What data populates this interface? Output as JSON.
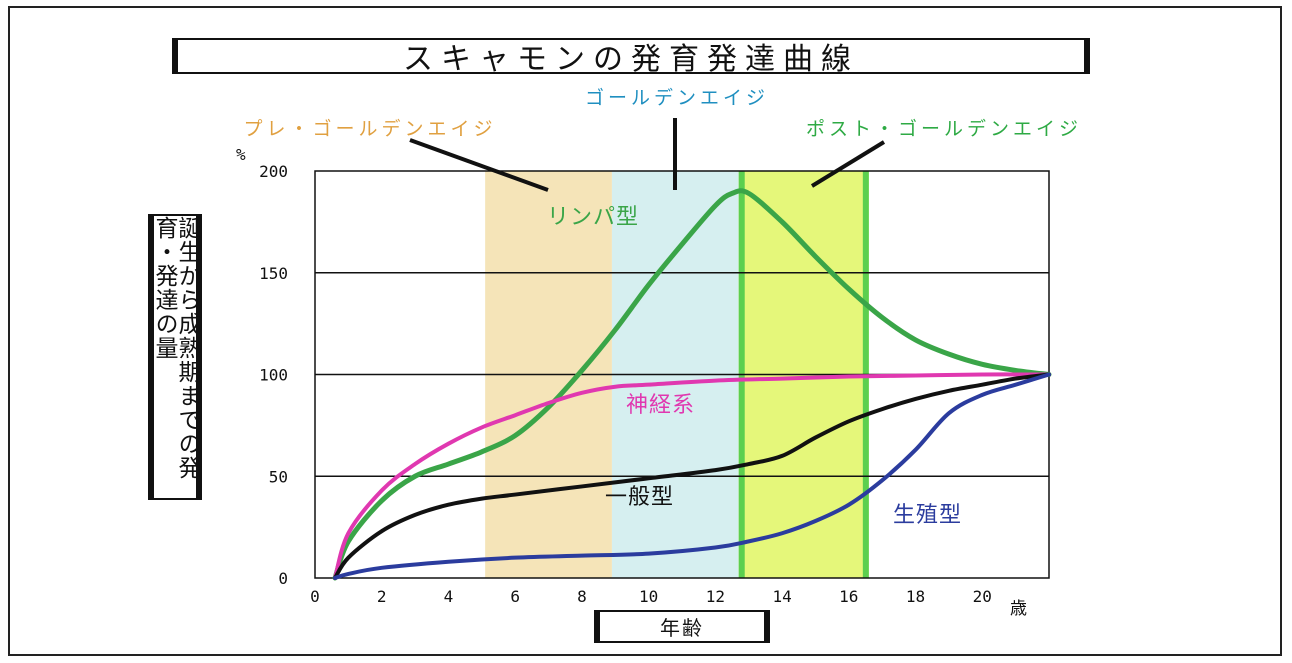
{
  "chart_data": {
    "type": "line",
    "title": "スキャモンの発育発達曲線",
    "xlabel": "年齢",
    "x_unit": "歳",
    "ylabel": "誕生から成熟期までの発育・発達の量",
    "y_unit": "%",
    "xlim": [
      0,
      22
    ],
    "ylim": [
      0,
      200
    ],
    "x_ticks": [
      "0",
      "2",
      "4",
      "6",
      "8",
      "10",
      "12",
      "14",
      "16",
      "18",
      "20"
    ],
    "y_ticks": [
      "0",
      "50",
      "100",
      "150",
      "200"
    ],
    "grid": "horizontal",
    "periods": [
      {
        "name": "プレ・ゴールデンエイジ",
        "x_start": 5.1,
        "x_end": 8.9,
        "color": "#f5e4b8",
        "label_color": "#e0a040"
      },
      {
        "name": "ゴールデンエイジ",
        "x_start": 8.9,
        "x_end": 12.7,
        "color": "#d6eff0",
        "label_color": "#1f8fc0"
      },
      {
        "name": "ポスト・ゴールデンエイジ",
        "x_start": 12.7,
        "x_end": 16.6,
        "color": "#e5f77a",
        "label_color": "#2eaa44"
      }
    ],
    "series": [
      {
        "name": "リンパ型",
        "color": "#3aa548",
        "x": [
          0.6,
          1,
          2,
          3,
          4,
          5,
          6,
          7,
          8,
          9,
          10,
          11,
          12,
          12.5,
          13,
          14,
          15,
          16,
          17,
          18,
          19,
          20,
          21,
          22
        ],
        "y": [
          0,
          18,
          38,
          50,
          56,
          62,
          70,
          84,
          102,
          122,
          144,
          164,
          183,
          189,
          189,
          175,
          158,
          142,
          128,
          117,
          110,
          105,
          102,
          100
        ]
      },
      {
        "name": "神経系",
        "color": "#e038b0",
        "x": [
          0.6,
          1,
          2,
          3,
          4,
          5,
          6,
          7,
          8,
          9,
          10,
          12,
          14,
          16,
          18,
          20,
          22
        ],
        "y": [
          0,
          22,
          43,
          56,
          66,
          74,
          80,
          86,
          91,
          94,
          95,
          97,
          98,
          99,
          99.5,
          100,
          100
        ]
      },
      {
        "name": "一般型",
        "color": "#111111",
        "x": [
          0.6,
          1,
          2,
          3,
          4,
          5,
          6,
          8,
          10,
          12,
          13,
          14,
          15,
          16,
          17,
          18,
          19,
          20,
          21,
          22
        ],
        "y": [
          0,
          10,
          23,
          31,
          36,
          39,
          41,
          45,
          49,
          53,
          56,
          60,
          69,
          77,
          83,
          88,
          92,
          95,
          98,
          100
        ]
      },
      {
        "name": "生殖型",
        "color": "#2b3c9e",
        "x": [
          0.6,
          1,
          2,
          4,
          6,
          8,
          10,
          12,
          13,
          14,
          15,
          16,
          17,
          18,
          19,
          20,
          21,
          22
        ],
        "y": [
          0,
          2,
          5,
          8,
          10,
          11,
          12,
          15,
          18,
          22,
          28,
          36,
          48,
          63,
          81,
          90,
          95,
          100
        ]
      }
    ]
  }
}
